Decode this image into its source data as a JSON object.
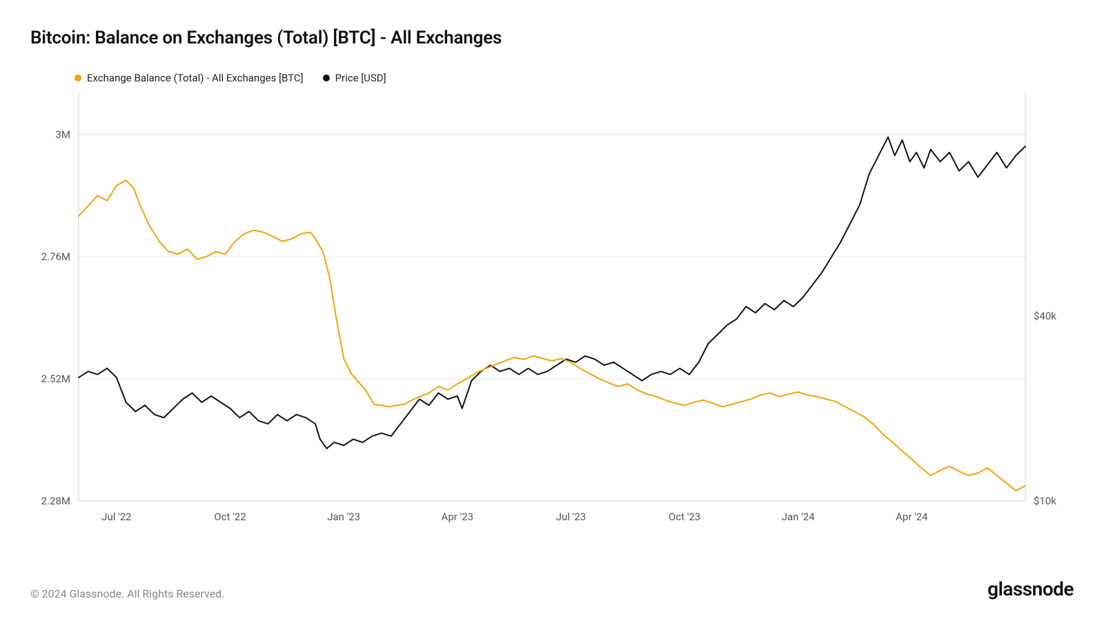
{
  "title": "Bitcoin: Balance on Exchanges (Total) [BTC] - All Exchanges",
  "legend": {
    "series1": {
      "label": "Exchange Balance (Total) - All Exchanges [BTC]",
      "color": "#f2a30a"
    },
    "series2": {
      "label": "Price [USD]",
      "color": "#111111"
    }
  },
  "footer": {
    "copyright": "© 2024 Glassnode. All Rights Reserved.",
    "brand": "glassnode"
  },
  "chart": {
    "type": "line",
    "background_color": "#ffffff",
    "grid_color": "#e6e6e6",
    "border_color": "#d0d0d0",
    "line_width": 2,
    "label_fontsize": 15,
    "label_color": "#555555",
    "x": {
      "ticks": [
        0.04,
        0.16,
        0.28,
        0.4,
        0.52,
        0.64,
        0.76,
        0.88
      ],
      "labels": [
        "Jul '22",
        "Oct '22",
        "Jan '23",
        "Apr '23",
        "Jul '23",
        "Oct '23",
        "Jan '24",
        "Apr '24"
      ]
    },
    "y_left": {
      "min": 2280000,
      "max": 3080000,
      "ticks": [
        2280000,
        2520000,
        2760000,
        3000000
      ],
      "labels": [
        "2.28M",
        "2.52M",
        "2.76M",
        "3M"
      ]
    },
    "y_right": {
      "min": 10000,
      "max": 76000,
      "ticks": [
        10000,
        40000
      ],
      "labels": [
        "$10k",
        "$40k"
      ]
    },
    "series_balance": {
      "color": "#f2a30a",
      "points": [
        [
          0.0,
          2840000
        ],
        [
          0.01,
          2860000
        ],
        [
          0.02,
          2880000
        ],
        [
          0.03,
          2870000
        ],
        [
          0.04,
          2900000
        ],
        [
          0.05,
          2910000
        ],
        [
          0.058,
          2895000
        ],
        [
          0.065,
          2860000
        ],
        [
          0.075,
          2820000
        ],
        [
          0.085,
          2790000
        ],
        [
          0.095,
          2770000
        ],
        [
          0.105,
          2765000
        ],
        [
          0.115,
          2775000
        ],
        [
          0.125,
          2755000
        ],
        [
          0.135,
          2760000
        ],
        [
          0.145,
          2770000
        ],
        [
          0.155,
          2765000
        ],
        [
          0.165,
          2790000
        ],
        [
          0.175,
          2805000
        ],
        [
          0.185,
          2812000
        ],
        [
          0.195,
          2808000
        ],
        [
          0.205,
          2800000
        ],
        [
          0.215,
          2790000
        ],
        [
          0.225,
          2795000
        ],
        [
          0.235,
          2805000
        ],
        [
          0.245,
          2808000
        ],
        [
          0.25,
          2795000
        ],
        [
          0.258,
          2770000
        ],
        [
          0.265,
          2720000
        ],
        [
          0.272,
          2640000
        ],
        [
          0.28,
          2560000
        ],
        [
          0.288,
          2530000
        ],
        [
          0.295,
          2515000
        ],
        [
          0.303,
          2498000
        ],
        [
          0.312,
          2470000
        ],
        [
          0.32,
          2468000
        ],
        [
          0.328,
          2465000
        ],
        [
          0.336,
          2468000
        ],
        [
          0.344,
          2470000
        ],
        [
          0.352,
          2478000
        ],
        [
          0.36,
          2485000
        ],
        [
          0.37,
          2492000
        ],
        [
          0.38,
          2505000
        ],
        [
          0.39,
          2498000
        ],
        [
          0.4,
          2510000
        ],
        [
          0.41,
          2520000
        ],
        [
          0.42,
          2532000
        ],
        [
          0.43,
          2540000
        ],
        [
          0.44,
          2548000
        ],
        [
          0.45,
          2555000
        ],
        [
          0.46,
          2562000
        ],
        [
          0.47,
          2558000
        ],
        [
          0.48,
          2565000
        ],
        [
          0.49,
          2560000
        ],
        [
          0.5,
          2555000
        ],
        [
          0.51,
          2560000
        ],
        [
          0.52,
          2552000
        ],
        [
          0.53,
          2540000
        ],
        [
          0.54,
          2530000
        ],
        [
          0.55,
          2520000
        ],
        [
          0.56,
          2512000
        ],
        [
          0.57,
          2505000
        ],
        [
          0.58,
          2510000
        ],
        [
          0.59,
          2498000
        ],
        [
          0.6,
          2490000
        ],
        [
          0.61,
          2485000
        ],
        [
          0.62,
          2478000
        ],
        [
          0.63,
          2472000
        ],
        [
          0.64,
          2468000
        ],
        [
          0.65,
          2474000
        ],
        [
          0.66,
          2478000
        ],
        [
          0.67,
          2472000
        ],
        [
          0.68,
          2465000
        ],
        [
          0.69,
          2470000
        ],
        [
          0.7,
          2475000
        ],
        [
          0.71,
          2480000
        ],
        [
          0.72,
          2488000
        ],
        [
          0.73,
          2492000
        ],
        [
          0.74,
          2485000
        ],
        [
          0.75,
          2490000
        ],
        [
          0.76,
          2494000
        ],
        [
          0.77,
          2488000
        ],
        [
          0.78,
          2485000
        ],
        [
          0.79,
          2480000
        ],
        [
          0.8,
          2475000
        ],
        [
          0.81,
          2465000
        ],
        [
          0.82,
          2455000
        ],
        [
          0.83,
          2445000
        ],
        [
          0.84,
          2430000
        ],
        [
          0.85,
          2410000
        ],
        [
          0.86,
          2395000
        ],
        [
          0.87,
          2378000
        ],
        [
          0.88,
          2362000
        ],
        [
          0.89,
          2345000
        ],
        [
          0.9,
          2330000
        ],
        [
          0.91,
          2340000
        ],
        [
          0.92,
          2348000
        ],
        [
          0.93,
          2338000
        ],
        [
          0.94,
          2330000
        ],
        [
          0.95,
          2335000
        ],
        [
          0.96,
          2345000
        ],
        [
          0.97,
          2330000
        ],
        [
          0.98,
          2315000
        ],
        [
          0.99,
          2300000
        ],
        [
          1.0,
          2310000
        ]
      ]
    },
    "series_price": {
      "color": "#111111",
      "points": [
        [
          0.0,
          30000
        ],
        [
          0.01,
          31000
        ],
        [
          0.02,
          30500
        ],
        [
          0.03,
          31500
        ],
        [
          0.04,
          30000
        ],
        [
          0.05,
          26000
        ],
        [
          0.06,
          24500
        ],
        [
          0.07,
          25500
        ],
        [
          0.08,
          24000
        ],
        [
          0.09,
          23500
        ],
        [
          0.1,
          25000
        ],
        [
          0.11,
          26500
        ],
        [
          0.12,
          27500
        ],
        [
          0.13,
          26000
        ],
        [
          0.14,
          27000
        ],
        [
          0.15,
          26000
        ],
        [
          0.16,
          25000
        ],
        [
          0.17,
          23500
        ],
        [
          0.18,
          24500
        ],
        [
          0.19,
          23000
        ],
        [
          0.2,
          22500
        ],
        [
          0.21,
          24000
        ],
        [
          0.22,
          23000
        ],
        [
          0.23,
          24000
        ],
        [
          0.24,
          23500
        ],
        [
          0.25,
          22500
        ],
        [
          0.255,
          20000
        ],
        [
          0.262,
          18500
        ],
        [
          0.27,
          19500
        ],
        [
          0.28,
          19000
        ],
        [
          0.29,
          20000
        ],
        [
          0.3,
          19500
        ],
        [
          0.31,
          20500
        ],
        [
          0.32,
          21000
        ],
        [
          0.33,
          20500
        ],
        [
          0.34,
          22500
        ],
        [
          0.35,
          24500
        ],
        [
          0.36,
          26500
        ],
        [
          0.37,
          25500
        ],
        [
          0.38,
          27500
        ],
        [
          0.39,
          26500
        ],
        [
          0.4,
          27000
        ],
        [
          0.405,
          25000
        ],
        [
          0.415,
          29500
        ],
        [
          0.425,
          31000
        ],
        [
          0.435,
          32000
        ],
        [
          0.445,
          31000
        ],
        [
          0.455,
          31500
        ],
        [
          0.465,
          30500
        ],
        [
          0.475,
          31500
        ],
        [
          0.485,
          30500
        ],
        [
          0.495,
          31000
        ],
        [
          0.505,
          32000
        ],
        [
          0.515,
          33000
        ],
        [
          0.525,
          32500
        ],
        [
          0.535,
          33500
        ],
        [
          0.545,
          33000
        ],
        [
          0.555,
          32000
        ],
        [
          0.565,
          32500
        ],
        [
          0.575,
          31500
        ],
        [
          0.585,
          30500
        ],
        [
          0.595,
          29500
        ],
        [
          0.605,
          30500
        ],
        [
          0.615,
          31000
        ],
        [
          0.625,
          30500
        ],
        [
          0.635,
          31500
        ],
        [
          0.645,
          30500
        ],
        [
          0.655,
          32500
        ],
        [
          0.665,
          35500
        ],
        [
          0.675,
          37000
        ],
        [
          0.685,
          38500
        ],
        [
          0.695,
          39500
        ],
        [
          0.705,
          41500
        ],
        [
          0.715,
          40500
        ],
        [
          0.725,
          42000
        ],
        [
          0.735,
          41000
        ],
        [
          0.745,
          42500
        ],
        [
          0.755,
          41500
        ],
        [
          0.765,
          43000
        ],
        [
          0.775,
          45000
        ],
        [
          0.785,
          47000
        ],
        [
          0.795,
          49500
        ],
        [
          0.805,
          52000
        ],
        [
          0.815,
          55000
        ],
        [
          0.825,
          58000
        ],
        [
          0.835,
          63000
        ],
        [
          0.845,
          66000
        ],
        [
          0.855,
          69000
        ],
        [
          0.862,
          66000
        ],
        [
          0.87,
          68500
        ],
        [
          0.878,
          65000
        ],
        [
          0.885,
          66500
        ],
        [
          0.893,
          64000
        ],
        [
          0.9,
          67000
        ],
        [
          0.91,
          65000
        ],
        [
          0.92,
          66500
        ],
        [
          0.93,
          63500
        ],
        [
          0.94,
          65000
        ],
        [
          0.95,
          62500
        ],
        [
          0.96,
          64500
        ],
        [
          0.97,
          66500
        ],
        [
          0.98,
          64000
        ],
        [
          0.99,
          66000
        ],
        [
          1.0,
          67500
        ]
      ]
    }
  }
}
